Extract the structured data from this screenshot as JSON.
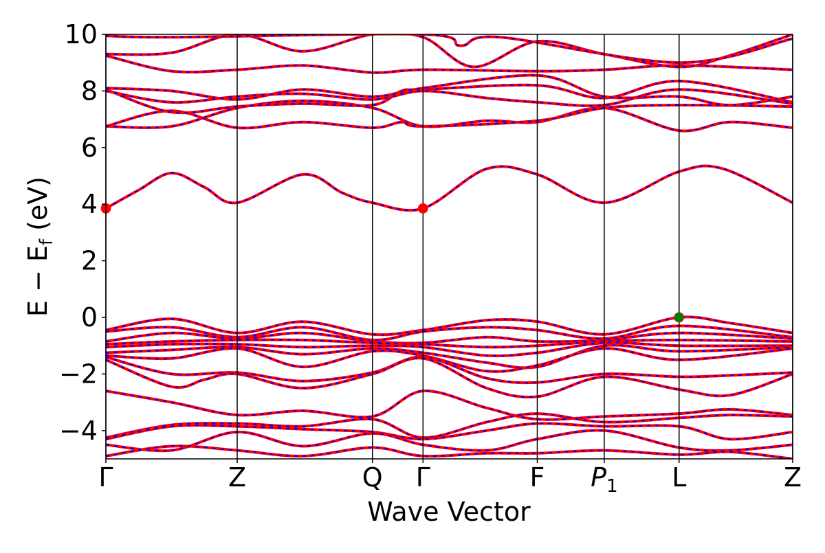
{
  "chart_data": {
    "type": "line",
    "title": "",
    "xlabel": "Wave Vector",
    "ylabel": {
      "main": "E − E",
      "sub": "f",
      "unit": " (eV)"
    },
    "ylim": [
      -5,
      10
    ],
    "yticks": [
      {
        "value": -4,
        "label": "−4"
      },
      {
        "value": -2,
        "label": "−2"
      },
      {
        "value": 0,
        "label": "0"
      },
      {
        "value": 2,
        "label": "2"
      },
      {
        "value": 4,
        "label": "4"
      },
      {
        "value": 6,
        "label": "6"
      },
      {
        "value": 8,
        "label": "8"
      },
      {
        "value": 10,
        "label": "10"
      }
    ],
    "xrange": [
      0,
      10.46
    ],
    "kpoints": [
      {
        "x": 0,
        "label": "Γ",
        "sub": ""
      },
      {
        "x": 2.0,
        "label": "Z",
        "sub": ""
      },
      {
        "x": 4.06,
        "label": "Q",
        "sub": ""
      },
      {
        "x": 4.83,
        "label": "Γ",
        "sub": ""
      },
      {
        "x": 6.57,
        "label": "F",
        "sub": ""
      },
      {
        "x": 7.59,
        "label": "P",
        "sub": "1"
      },
      {
        "x": 8.73,
        "label": "L",
        "sub": ""
      },
      {
        "x": 10.46,
        "label": "Z",
        "sub": ""
      }
    ],
    "grid": false,
    "series_styles": [
      {
        "color": "#ff0000",
        "style": "solid"
      },
      {
        "color": "#0000ff",
        "style": "dashed"
      }
    ],
    "markers": [
      {
        "x": 0,
        "y": 3.85,
        "color": "#ff0000",
        "kind": "CBM"
      },
      {
        "x": 4.83,
        "y": 3.85,
        "color": "#ff0000",
        "kind": "CBM"
      },
      {
        "x": 8.73,
        "y": 0.0,
        "color": "#008000",
        "kind": "VBM"
      }
    ],
    "bands": [
      {
        "y": [
          [
            0,
            3.85
          ],
          [
            0.5,
            4.5
          ],
          [
            1.0,
            5.1
          ],
          [
            1.5,
            4.6
          ],
          [
            2.0,
            4.05
          ],
          [
            3.0,
            5.05
          ],
          [
            3.6,
            4.4
          ],
          [
            4.06,
            4.05
          ],
          [
            4.83,
            3.85
          ],
          [
            5.8,
            5.25
          ],
          [
            6.57,
            5.05
          ],
          [
            7.59,
            4.05
          ],
          [
            8.73,
            5.15
          ],
          [
            9.4,
            5.25
          ],
          [
            10.46,
            4.05
          ]
        ]
      },
      {
        "y": [
          [
            0,
            6.75
          ],
          [
            1.0,
            6.75
          ],
          [
            2.0,
            7.4
          ],
          [
            3.0,
            7.65
          ],
          [
            4.06,
            7.4
          ],
          [
            4.83,
            6.75
          ],
          [
            5.8,
            6.95
          ],
          [
            6.57,
            6.9
          ],
          [
            7.59,
            7.4
          ],
          [
            8.73,
            6.6
          ],
          [
            9.5,
            6.9
          ],
          [
            10.46,
            6.7
          ]
        ]
      },
      {
        "y": [
          [
            0,
            6.75
          ],
          [
            1.0,
            7.3
          ],
          [
            2.0,
            6.7
          ],
          [
            3.0,
            6.9
          ],
          [
            4.06,
            6.7
          ],
          [
            4.5,
            6.9
          ],
          [
            4.83,
            6.75
          ],
          [
            6.57,
            6.95
          ],
          [
            7.59,
            7.4
          ],
          [
            8.73,
            7.5
          ],
          [
            10.46,
            7.45
          ]
        ]
      },
      {
        "y": [
          [
            0,
            8.05
          ],
          [
            1.0,
            7.25
          ],
          [
            2.0,
            7.45
          ],
          [
            3.0,
            7.55
          ],
          [
            4.06,
            7.5
          ],
          [
            4.5,
            8.0
          ],
          [
            4.83,
            8.05
          ],
          [
            6.57,
            8.2
          ],
          [
            7.59,
            7.75
          ],
          [
            8.73,
            8.35
          ],
          [
            10.46,
            7.6
          ]
        ]
      },
      {
        "y": [
          [
            0,
            8.1
          ],
          [
            1.0,
            8.0
          ],
          [
            2.0,
            7.7
          ],
          [
            3.0,
            8.05
          ],
          [
            4.06,
            7.8
          ],
          [
            4.83,
            8.1
          ],
          [
            6.57,
            8.55
          ],
          [
            7.59,
            7.8
          ],
          [
            8.73,
            7.8
          ],
          [
            9.5,
            7.5
          ],
          [
            10.46,
            7.8
          ]
        ]
      },
      {
        "y": [
          [
            0,
            8.0
          ],
          [
            1.0,
            7.6
          ],
          [
            2.0,
            7.8
          ],
          [
            3.0,
            7.9
          ],
          [
            4.06,
            7.7
          ],
          [
            4.83,
            8.0
          ],
          [
            5.8,
            7.75
          ],
          [
            6.57,
            7.6
          ],
          [
            7.59,
            7.5
          ],
          [
            8.73,
            8.05
          ],
          [
            10.46,
            7.55
          ]
        ]
      },
      {
        "y": [
          [
            0,
            9.25
          ],
          [
            1.0,
            8.7
          ],
          [
            2.0,
            8.75
          ],
          [
            3.0,
            8.9
          ],
          [
            4.06,
            8.65
          ],
          [
            4.83,
            8.75
          ],
          [
            6.57,
            8.7
          ],
          [
            7.59,
            8.75
          ],
          [
            8.73,
            8.9
          ],
          [
            10.46,
            8.75
          ]
        ]
      },
      {
        "y": [
          [
            0,
            9.3
          ],
          [
            1.0,
            9.35
          ],
          [
            2.0,
            10.0
          ],
          [
            3.0,
            9.4
          ],
          [
            4.06,
            10.0
          ],
          [
            4.83,
            9.9
          ],
          [
            5.6,
            8.85
          ],
          [
            6.57,
            9.75
          ],
          [
            7.59,
            9.3
          ],
          [
            8.73,
            8.85
          ],
          [
            9.5,
            9.25
          ],
          [
            10.46,
            10.0
          ]
        ]
      },
      {
        "y": [
          [
            0,
            9.95
          ],
          [
            1.0,
            9.9
          ],
          [
            4.83,
            10.0
          ],
          [
            5.4,
            9.6
          ],
          [
            6.0,
            9.9
          ],
          [
            8.73,
            9.0
          ],
          [
            10.46,
            9.85
          ]
        ]
      },
      {
        "y": [
          [
            0,
            -0.45
          ],
          [
            1.0,
            -0.05
          ],
          [
            2.0,
            -0.55
          ],
          [
            3.0,
            -0.15
          ],
          [
            4.06,
            -0.6
          ],
          [
            4.83,
            -0.45
          ],
          [
            5.8,
            -0.1
          ],
          [
            6.57,
            -0.15
          ],
          [
            7.59,
            -0.6
          ],
          [
            8.73,
            0.0
          ],
          [
            9.5,
            -0.2
          ],
          [
            10.46,
            -0.55
          ]
        ]
      },
      {
        "y": [
          [
            0,
            -0.5
          ],
          [
            1.0,
            -0.35
          ],
          [
            2.0,
            -0.7
          ],
          [
            3.0,
            -0.35
          ],
          [
            4.06,
            -0.8
          ],
          [
            4.83,
            -0.5
          ],
          [
            5.8,
            -0.35
          ],
          [
            6.57,
            -0.45
          ],
          [
            7.59,
            -0.75
          ],
          [
            8.73,
            -0.3
          ],
          [
            10.46,
            -0.7
          ]
        ]
      },
      {
        "y": [
          [
            0,
            -0.85
          ],
          [
            1.0,
            -0.55
          ],
          [
            2.0,
            -0.75
          ],
          [
            3.0,
            -0.55
          ],
          [
            4.06,
            -0.85
          ],
          [
            4.83,
            -0.9
          ],
          [
            5.8,
            -0.7
          ],
          [
            6.57,
            -0.85
          ],
          [
            7.59,
            -0.8
          ],
          [
            8.73,
            -0.55
          ],
          [
            10.46,
            -0.75
          ]
        ]
      },
      {
        "y": [
          [
            0,
            -0.95
          ],
          [
            1.0,
            -0.85
          ],
          [
            2.0,
            -0.8
          ],
          [
            3.0,
            -0.8
          ],
          [
            4.06,
            -0.9
          ],
          [
            4.83,
            -0.95
          ],
          [
            5.8,
            -1.05
          ],
          [
            6.57,
            -1.0
          ],
          [
            7.59,
            -0.85
          ],
          [
            8.73,
            -0.8
          ],
          [
            10.46,
            -0.85
          ]
        ]
      },
      {
        "y": [
          [
            0,
            -1.05
          ],
          [
            1.0,
            -0.95
          ],
          [
            2.0,
            -0.95
          ],
          [
            3.0,
            -1.05
          ],
          [
            4.06,
            -1.0
          ],
          [
            4.83,
            -1.05
          ],
          [
            5.8,
            -1.35
          ],
          [
            6.57,
            -1.25
          ],
          [
            7.59,
            -0.9
          ],
          [
            8.73,
            -1.0
          ],
          [
            10.46,
            -1.0
          ]
        ]
      },
      {
        "y": [
          [
            0,
            -1.25
          ],
          [
            1.0,
            -1.15
          ],
          [
            2.0,
            -1.05
          ],
          [
            3.0,
            -1.3
          ],
          [
            4.06,
            -1.1
          ],
          [
            4.83,
            -1.25
          ],
          [
            5.8,
            -1.6
          ],
          [
            6.57,
            -1.75
          ],
          [
            7.59,
            -1.0
          ],
          [
            8.73,
            -1.2
          ],
          [
            10.46,
            -1.05
          ]
        ]
      },
      {
        "y": [
          [
            0,
            -1.35
          ],
          [
            1.0,
            -1.45
          ],
          [
            2.0,
            -1.1
          ],
          [
            3.0,
            -1.75
          ],
          [
            4.06,
            -1.2
          ],
          [
            4.83,
            -1.35
          ],
          [
            5.8,
            -1.9
          ],
          [
            6.57,
            -1.7
          ],
          [
            7.59,
            -1.1
          ],
          [
            8.73,
            -1.5
          ],
          [
            10.46,
            -1.1
          ]
        ]
      },
      {
        "y": [
          [
            0,
            -1.4
          ],
          [
            1.0,
            -2.0
          ],
          [
            2.0,
            -1.95
          ],
          [
            3.0,
            -2.25
          ],
          [
            4.06,
            -1.95
          ],
          [
            4.83,
            -1.4
          ],
          [
            5.8,
            -2.15
          ],
          [
            6.57,
            -2.3
          ],
          [
            7.59,
            -2.0
          ],
          [
            8.73,
            -2.1
          ],
          [
            9.5,
            -2.05
          ],
          [
            10.46,
            -1.95
          ]
        ]
      },
      {
        "y": [
          [
            0,
            -1.5
          ],
          [
            1.0,
            -2.45
          ],
          [
            1.5,
            -2.2
          ],
          [
            2.0,
            -2.0
          ],
          [
            3.0,
            -2.5
          ],
          [
            4.06,
            -2.0
          ],
          [
            4.83,
            -1.45
          ],
          [
            5.8,
            -2.5
          ],
          [
            6.57,
            -2.8
          ],
          [
            7.59,
            -2.1
          ],
          [
            8.73,
            -2.55
          ],
          [
            9.5,
            -2.75
          ],
          [
            10.46,
            -2.0
          ]
        ]
      },
      {
        "y": [
          [
            0,
            -2.6
          ],
          [
            1.0,
            -3.0
          ],
          [
            2.0,
            -3.45
          ],
          [
            3.0,
            -3.3
          ],
          [
            4.06,
            -3.5
          ],
          [
            4.83,
            -2.6
          ],
          [
            5.8,
            -3.2
          ],
          [
            6.57,
            -3.6
          ],
          [
            7.59,
            -3.5
          ],
          [
            8.73,
            -3.4
          ],
          [
            9.5,
            -3.25
          ],
          [
            10.46,
            -3.45
          ]
        ]
      },
      {
        "y": [
          [
            0,
            -4.25
          ],
          [
            1.0,
            -3.8
          ],
          [
            2.0,
            -3.75
          ],
          [
            3.0,
            -3.85
          ],
          [
            4.06,
            -3.6
          ],
          [
            4.83,
            -4.25
          ],
          [
            5.8,
            -3.7
          ],
          [
            6.57,
            -3.4
          ],
          [
            7.59,
            -3.7
          ],
          [
            8.73,
            -3.55
          ],
          [
            9.5,
            -3.45
          ],
          [
            10.46,
            -3.5
          ]
        ]
      },
      {
        "y": [
          [
            0,
            -4.3
          ],
          [
            1.0,
            -3.85
          ],
          [
            2.0,
            -3.85
          ],
          [
            3.0,
            -3.95
          ],
          [
            4.06,
            -4.05
          ],
          [
            4.83,
            -4.3
          ],
          [
            5.8,
            -4.0
          ],
          [
            6.57,
            -3.75
          ],
          [
            7.59,
            -3.85
          ],
          [
            8.73,
            -3.85
          ],
          [
            9.5,
            -4.3
          ],
          [
            10.46,
            -4.05
          ]
        ]
      },
      {
        "y": [
          [
            0,
            -4.5
          ],
          [
            1.0,
            -4.7
          ],
          [
            2.0,
            -4.05
          ],
          [
            3.0,
            -4.55
          ],
          [
            4.06,
            -4.1
          ],
          [
            4.83,
            -4.5
          ],
          [
            5.8,
            -4.7
          ],
          [
            6.57,
            -4.3
          ],
          [
            7.59,
            -4.0
          ],
          [
            8.73,
            -4.6
          ],
          [
            9.5,
            -4.7
          ],
          [
            10.46,
            -4.5
          ]
        ]
      },
      {
        "y": [
          [
            0,
            -4.9
          ],
          [
            1.0,
            -4.55
          ],
          [
            2.0,
            -4.7
          ],
          [
            3.0,
            -4.9
          ],
          [
            4.06,
            -4.6
          ],
          [
            4.83,
            -4.9
          ],
          [
            5.8,
            -4.8
          ],
          [
            6.57,
            -4.8
          ],
          [
            7.59,
            -4.7
          ],
          [
            8.73,
            -4.85
          ],
          [
            9.5,
            -4.75
          ],
          [
            10.46,
            -5.0
          ]
        ]
      }
    ]
  }
}
